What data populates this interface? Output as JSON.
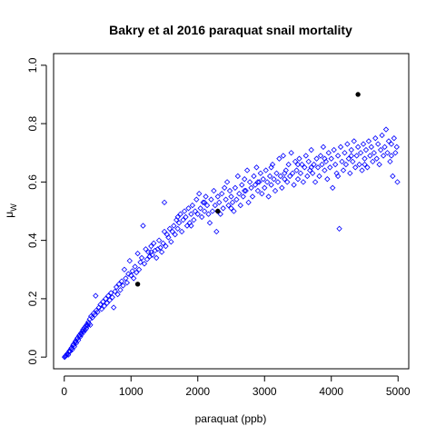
{
  "chart_data": {
    "type": "scatter",
    "title": "Bakry et al 2016 paraquat snail mortality",
    "xlabel": "paraquat (ppb)",
    "ylabel": "μ",
    "ylabel_sub": "W",
    "xlim": [
      -160,
      5160
    ],
    "ylim": [
      -0.04,
      1.04
    ],
    "xticks": [
      0,
      1000,
      2000,
      3000,
      4000,
      5000
    ],
    "xtick_labels": [
      "0",
      "1000",
      "2000",
      "3000",
      "4000",
      "5000"
    ],
    "yticks": [
      0.0,
      0.2,
      0.4,
      0.6,
      0.8,
      1.0
    ],
    "ytick_labels": [
      "0.0",
      "0.2",
      "0.4",
      "0.6",
      "0.8",
      "1.0"
    ],
    "grid": false,
    "legend": "none",
    "series": [
      {
        "marker": "open-diamond",
        "color": "#0000ff",
        "points": [
          [
            5,
            0.0
          ],
          [
            12,
            0.002
          ],
          [
            20,
            0.004
          ],
          [
            30,
            0.006
          ],
          [
            40,
            0.01
          ],
          [
            50,
            0.012
          ],
          [
            60,
            0.008
          ],
          [
            70,
            0.018
          ],
          [
            80,
            0.022
          ],
          [
            90,
            0.02
          ],
          [
            100,
            0.028
          ],
          [
            110,
            0.032
          ],
          [
            120,
            0.026
          ],
          [
            130,
            0.04
          ],
          [
            140,
            0.044
          ],
          [
            150,
            0.036
          ],
          [
            160,
            0.05
          ],
          [
            170,
            0.055
          ],
          [
            180,
            0.048
          ],
          [
            190,
            0.062
          ],
          [
            200,
            0.066
          ],
          [
            210,
            0.058
          ],
          [
            220,
            0.072
          ],
          [
            230,
            0.076
          ],
          [
            240,
            0.07
          ],
          [
            250,
            0.082
          ],
          [
            260,
            0.078
          ],
          [
            270,
            0.088
          ],
          [
            280,
            0.094
          ],
          [
            290,
            0.086
          ],
          [
            300,
            0.1
          ],
          [
            310,
            0.092
          ],
          [
            320,
            0.106
          ],
          [
            330,
            0.098
          ],
          [
            340,
            0.112
          ],
          [
            350,
            0.108
          ],
          [
            360,
            0.12
          ],
          [
            370,
            0.115
          ],
          [
            380,
            0.13
          ],
          [
            390,
            0.11
          ],
          [
            400,
            0.14
          ],
          [
            420,
            0.135
          ],
          [
            440,
            0.15
          ],
          [
            460,
            0.145
          ],
          [
            470,
            0.21
          ],
          [
            480,
            0.16
          ],
          [
            500,
            0.155
          ],
          [
            520,
            0.17
          ],
          [
            540,
            0.18
          ],
          [
            560,
            0.165
          ],
          [
            580,
            0.19
          ],
          [
            600,
            0.175
          ],
          [
            620,
            0.2
          ],
          [
            640,
            0.185
          ],
          [
            660,
            0.21
          ],
          [
            680,
            0.195
          ],
          [
            700,
            0.22
          ],
          [
            720,
            0.205
          ],
          [
            740,
            0.17
          ],
          [
            760,
            0.225
          ],
          [
            780,
            0.24
          ],
          [
            800,
            0.215
          ],
          [
            820,
            0.25
          ],
          [
            840,
            0.23
          ],
          [
            860,
            0.26
          ],
          [
            880,
            0.245
          ],
          [
            900,
            0.3
          ],
          [
            920,
            0.27
          ],
          [
            940,
            0.255
          ],
          [
            960,
            0.285
          ],
          [
            980,
            0.33
          ],
          [
            1000,
            0.28
          ],
          [
            1020,
            0.295
          ],
          [
            1040,
            0.27
          ],
          [
            1060,
            0.31
          ],
          [
            1080,
            0.29
          ],
          [
            1100,
            0.355
          ],
          [
            1120,
            0.3
          ],
          [
            1140,
            0.325
          ],
          [
            1160,
            0.34
          ],
          [
            1180,
            0.45
          ],
          [
            1200,
            0.32
          ],
          [
            1220,
            0.37
          ],
          [
            1240,
            0.335
          ],
          [
            1260,
            0.36
          ],
          [
            1280,
            0.345
          ],
          [
            1300,
            0.38
          ],
          [
            1320,
            0.35
          ],
          [
            1340,
            0.39
          ],
          [
            1360,
            0.365
          ],
          [
            1380,
            0.34
          ],
          [
            1400,
            0.37
          ],
          [
            1420,
            0.4
          ],
          [
            1440,
            0.375
          ],
          [
            1460,
            0.36
          ],
          [
            1480,
            0.39
          ],
          [
            1500,
            0.53
          ],
          [
            1520,
            0.38
          ],
          [
            1540,
            0.42
          ],
          [
            1560,
            0.41
          ],
          [
            1580,
            0.44
          ],
          [
            1600,
            0.395
          ],
          [
            1620,
            0.43
          ],
          [
            1640,
            0.45
          ],
          [
            1660,
            0.42
          ],
          [
            1680,
            0.47
          ],
          [
            1700,
            0.44
          ],
          [
            1720,
            0.46
          ],
          [
            1740,
            0.49
          ],
          [
            1760,
            0.43
          ],
          [
            1780,
            0.47
          ],
          [
            1800,
            0.5
          ],
          [
            1820,
            0.48
          ],
          [
            1840,
            0.45
          ],
          [
            1860,
            0.51
          ],
          [
            1880,
            0.46
          ],
          [
            1900,
            0.49
          ],
          [
            1920,
            0.52
          ],
          [
            1940,
            0.47
          ],
          [
            1960,
            0.5
          ],
          [
            1980,
            0.54
          ],
          [
            2000,
            0.49
          ],
          [
            2020,
            0.56
          ],
          [
            2040,
            0.51
          ],
          [
            2060,
            0.48
          ],
          [
            2080,
            0.53
          ],
          [
            2100,
            0.5
          ],
          [
            2120,
            0.55
          ],
          [
            2140,
            0.52
          ],
          [
            2160,
            0.49
          ],
          [
            2180,
            0.46
          ],
          [
            2200,
            0.54
          ],
          [
            2220,
            0.5
          ],
          [
            2240,
            0.57
          ],
          [
            2260,
            0.52
          ],
          [
            2280,
            0.43
          ],
          [
            2300,
            0.55
          ],
          [
            2320,
            0.53
          ],
          [
            2340,
            0.49
          ],
          [
            2360,
            0.56
          ],
          [
            2380,
            0.51
          ],
          [
            2400,
            0.58
          ],
          [
            2420,
            0.54
          ],
          [
            2440,
            0.6
          ],
          [
            2460,
            0.52
          ],
          [
            2480,
            0.57
          ],
          [
            2500,
            0.55
          ],
          [
            2520,
            0.53
          ],
          [
            2540,
            0.5
          ],
          [
            2560,
            0.58
          ],
          [
            2580,
            0.54
          ],
          [
            2600,
            0.62
          ],
          [
            2620,
            0.56
          ],
          [
            2640,
            0.52
          ],
          [
            2660,
            0.59
          ],
          [
            2680,
            0.55
          ],
          [
            2700,
            0.61
          ],
          [
            2720,
            0.57
          ],
          [
            2740,
            0.64
          ],
          [
            2760,
            0.53
          ],
          [
            2780,
            0.6
          ],
          [
            2800,
            0.58
          ],
          [
            2820,
            0.55
          ],
          [
            2840,
            0.62
          ],
          [
            2860,
            0.59
          ],
          [
            2880,
            0.65
          ],
          [
            2900,
            0.57
          ],
          [
            2920,
            0.6
          ],
          [
            2940,
            0.63
          ],
          [
            2960,
            0.56
          ],
          [
            2980,
            0.61
          ],
          [
            3000,
            0.58
          ],
          [
            3020,
            0.64
          ],
          [
            3040,
            0.6
          ],
          [
            3060,
            0.55
          ],
          [
            3080,
            0.62
          ],
          [
            3100,
            0.59
          ],
          [
            3120,
            0.66
          ],
          [
            3140,
            0.61
          ],
          [
            3160,
            0.57
          ],
          [
            3180,
            0.63
          ],
          [
            3200,
            0.6
          ],
          [
            3220,
            0.68
          ],
          [
            3240,
            0.62
          ],
          [
            3260,
            0.58
          ],
          [
            3280,
            0.69
          ],
          [
            3300,
            0.61
          ],
          [
            3320,
            0.64
          ],
          [
            3340,
            0.6
          ],
          [
            3360,
            0.66
          ],
          [
            3380,
            0.62
          ],
          [
            3400,
            0.7
          ],
          [
            3420,
            0.63
          ],
          [
            3440,
            0.59
          ],
          [
            3460,
            0.67
          ],
          [
            3480,
            0.64
          ],
          [
            3500,
            0.61
          ],
          [
            3520,
            0.68
          ],
          [
            3540,
            0.63
          ],
          [
            3560,
            0.66
          ],
          [
            3580,
            0.6
          ],
          [
            3600,
            0.65
          ],
          [
            3620,
            0.69
          ],
          [
            3640,
            0.62
          ],
          [
            3660,
            0.67
          ],
          [
            3680,
            0.64
          ],
          [
            3700,
            0.71
          ],
          [
            3720,
            0.63
          ],
          [
            3740,
            0.66
          ],
          [
            3760,
            0.6
          ],
          [
            3780,
            0.68
          ],
          [
            3800,
            0.65
          ],
          [
            3820,
            0.62
          ],
          [
            3840,
            0.69
          ],
          [
            3860,
            0.66
          ],
          [
            3880,
            0.72
          ],
          [
            3900,
            0.64
          ],
          [
            3920,
            0.67
          ],
          [
            3940,
            0.61
          ],
          [
            3960,
            0.7
          ],
          [
            3980,
            0.65
          ],
          [
            4000,
            0.68
          ],
          [
            4020,
            0.58
          ],
          [
            4040,
            0.71
          ],
          [
            4060,
            0.66
          ],
          [
            4080,
            0.63
          ],
          [
            4100,
            0.69
          ],
          [
            4120,
            0.44
          ],
          [
            4140,
            0.72
          ],
          [
            4160,
            0.67
          ],
          [
            4180,
            0.64
          ],
          [
            4200,
            0.7
          ],
          [
            4220,
            0.66
          ],
          [
            4240,
            0.73
          ],
          [
            4260,
            0.68
          ],
          [
            4280,
            0.63
          ],
          [
            4300,
            0.71
          ],
          [
            4320,
            0.67
          ],
          [
            4340,
            0.74
          ],
          [
            4360,
            0.65
          ],
          [
            4380,
            0.69
          ],
          [
            4400,
            0.72
          ],
          [
            4420,
            0.66
          ],
          [
            4440,
            0.7
          ],
          [
            4460,
            0.64
          ],
          [
            4480,
            0.73
          ],
          [
            4500,
            0.68
          ],
          [
            4520,
            0.71
          ],
          [
            4540,
            0.65
          ],
          [
            4560,
            0.74
          ],
          [
            4580,
            0.69
          ],
          [
            4600,
            0.72
          ],
          [
            4620,
            0.67
          ],
          [
            4640,
            0.7
          ],
          [
            4660,
            0.75
          ],
          [
            4680,
            0.68
          ],
          [
            4700,
            0.73
          ],
          [
            4720,
            0.66
          ],
          [
            4740,
            0.71
          ],
          [
            4760,
            0.76
          ],
          [
            4780,
            0.69
          ],
          [
            4800,
            0.72
          ],
          [
            4820,
            0.78
          ],
          [
            4840,
            0.7
          ],
          [
            4860,
            0.74
          ],
          [
            4880,
            0.67
          ],
          [
            4900,
            0.73
          ],
          [
            4920,
            0.62
          ],
          [
            4940,
            0.75
          ],
          [
            4960,
            0.7
          ],
          [
            4980,
            0.72
          ],
          [
            4990,
            0.6
          ],
          [
            1300,
            0.36
          ],
          [
            1700,
            0.48
          ],
          [
            2100,
            0.53
          ],
          [
            2500,
            0.51
          ],
          [
            2900,
            0.6
          ],
          [
            3300,
            0.63
          ],
          [
            3700,
            0.65
          ],
          [
            4100,
            0.62
          ],
          [
            4500,
            0.66
          ],
          [
            4900,
            0.69
          ],
          [
            1500,
            0.43
          ],
          [
            1900,
            0.45
          ],
          [
            2300,
            0.5
          ],
          [
            2700,
            0.57
          ],
          [
            3100,
            0.65
          ],
          [
            3500,
            0.66
          ],
          [
            3900,
            0.68
          ],
          [
            4300,
            0.69
          ]
        ]
      },
      {
        "marker": "solid-circle",
        "color": "#000000",
        "points": [
          [
            1100,
            0.25
          ],
          [
            2300,
            0.5
          ],
          [
            4400,
            0.9
          ]
        ]
      }
    ]
  }
}
